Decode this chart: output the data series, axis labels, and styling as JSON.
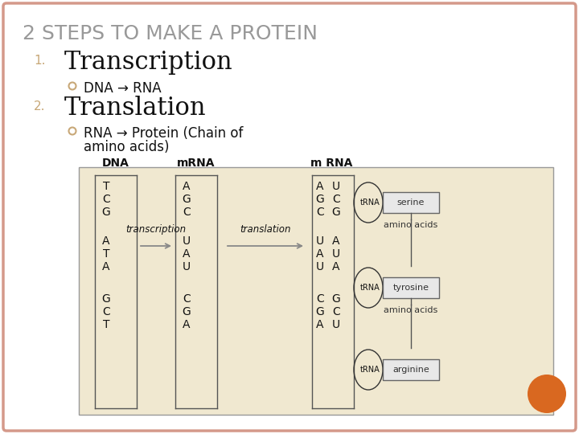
{
  "title": "2 STEPS TO MAKE A PROTEIN",
  "title_color": "#999999",
  "title_fontsize": 18,
  "background_color": "#FFFFFF",
  "border_color": "#D4998A",
  "step1_number": "1.",
  "step1_heading": "Transcription",
  "step1_bullet": "DNA → RNA",
  "step2_number": "2.",
  "step2_heading": "Translation",
  "step2_bullet_line1": "RNA → Protein (Chain of",
  "step2_bullet_line2": "amino acids)",
  "orange_circle_color": "#D96820",
  "diagram_bg": "#F0E8D0",
  "diagram_border": "#999999",
  "number_color": "#C8A878",
  "bullet_color": "#C8A878",
  "heading_color": "#111111",
  "text_color": "#111111",
  "arrow_color": "#888888"
}
